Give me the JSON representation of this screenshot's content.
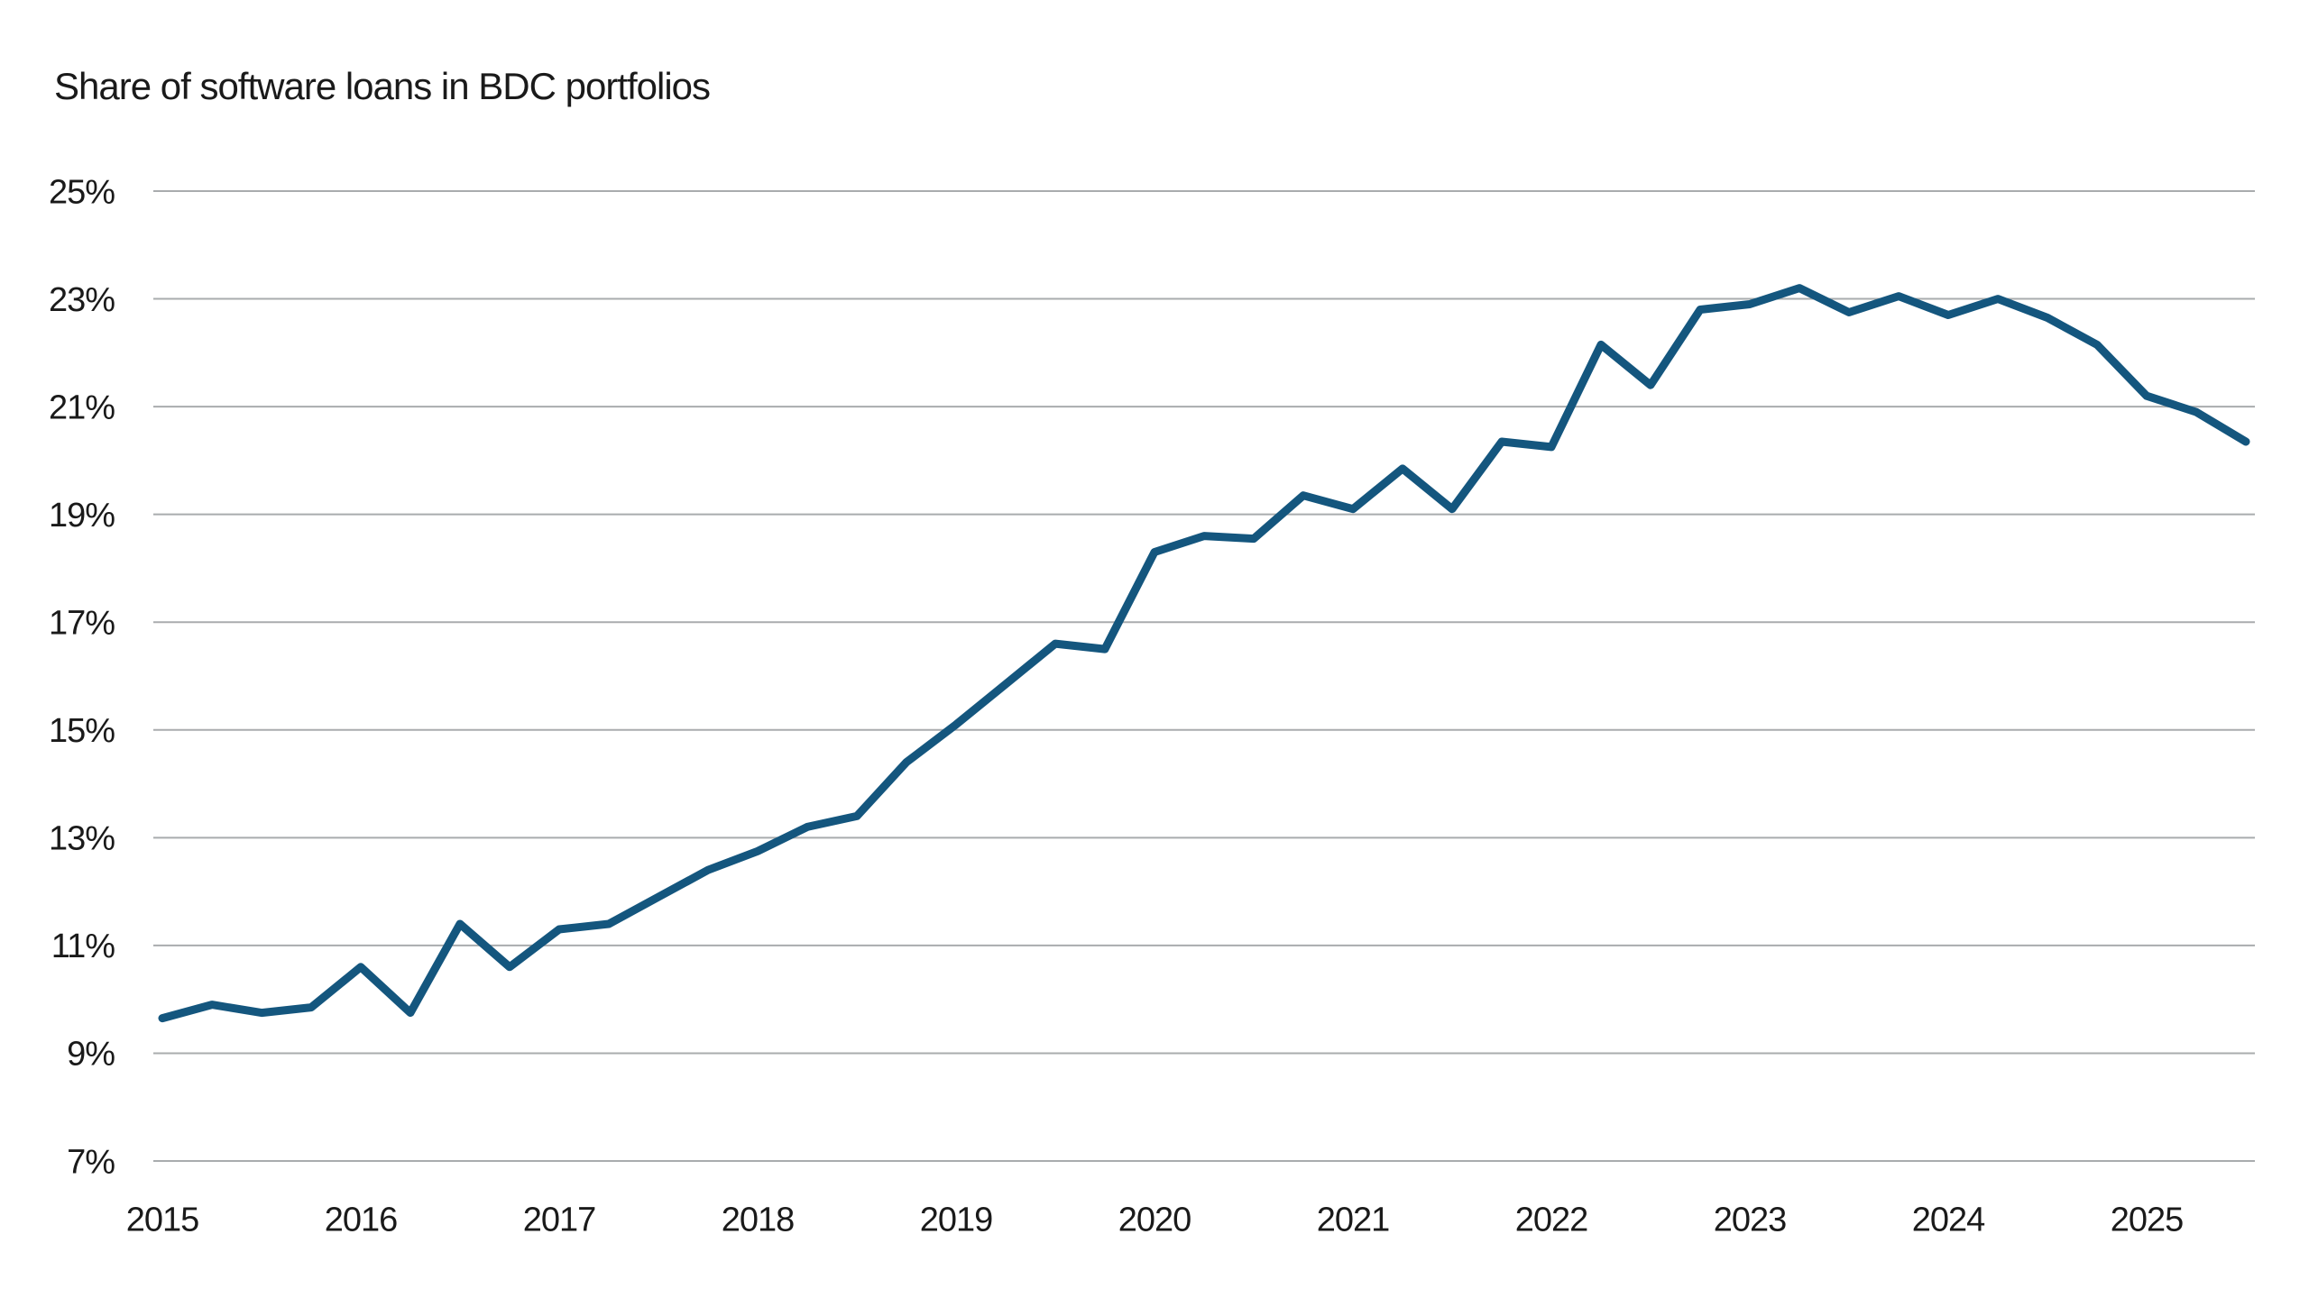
{
  "chart_data": {
    "type": "line",
    "title": "Share of software loans in BDC portfolios",
    "xlabel": "",
    "ylabel": "",
    "ylim": [
      7,
      25
    ],
    "xlim": [
      2015.0,
      2025.75
    ],
    "grid": "horizontal-only",
    "legend": "none",
    "y_ticks": [
      7,
      9,
      11,
      13,
      15,
      17,
      19,
      21,
      23,
      25
    ],
    "y_tick_labels": [
      "7%",
      "9%",
      "11%",
      "13%",
      "15%",
      "17%",
      "19%",
      "21%",
      "23%",
      "25%"
    ],
    "x_ticks": [
      2015,
      2016,
      2017,
      2018,
      2019,
      2020,
      2021,
      2022,
      2023,
      2024,
      2025
    ],
    "x_tick_labels": [
      "2015",
      "2016",
      "2017",
      "2018",
      "2019",
      "2020",
      "2021",
      "2022",
      "2023",
      "2024",
      "2025"
    ],
    "series": [
      {
        "name": "Share of software loans in BDC portfolios",
        "frequency": "quarterly",
        "x": [
          2015.0,
          2015.25,
          2015.5,
          2015.75,
          2016.0,
          2016.25,
          2016.5,
          2016.75,
          2017.0,
          2017.25,
          2017.5,
          2017.75,
          2018.0,
          2018.25,
          2018.5,
          2018.75,
          2019.0,
          2019.25,
          2019.5,
          2019.75,
          2020.0,
          2020.25,
          2020.5,
          2020.75,
          2021.0,
          2021.25,
          2021.5,
          2021.75,
          2022.0,
          2022.25,
          2022.5,
          2022.75,
          2023.0,
          2023.25,
          2023.5,
          2023.75,
          2024.0,
          2024.25,
          2024.5,
          2024.75,
          2025.0,
          2025.25,
          2025.5
        ],
        "values": [
          9.65,
          9.9,
          9.75,
          9.85,
          10.6,
          9.75,
          11.4,
          10.6,
          11.3,
          11.4,
          11.9,
          12.4,
          12.75,
          13.2,
          13.4,
          14.4,
          15.1,
          15.85,
          16.6,
          16.5,
          18.3,
          18.6,
          18.55,
          19.35,
          19.1,
          19.85,
          19.1,
          20.35,
          20.25,
          22.15,
          21.4,
          22.8,
          22.9,
          23.2,
          22.75,
          23.05,
          22.7,
          23.0,
          22.65,
          22.15,
          21.2,
          20.9,
          20.35
        ]
      }
    ],
    "colors": {
      "line": "#14567E",
      "grid": "#A9ACAE",
      "text": "#1A1A1A",
      "background": "#FFFFFF"
    }
  }
}
